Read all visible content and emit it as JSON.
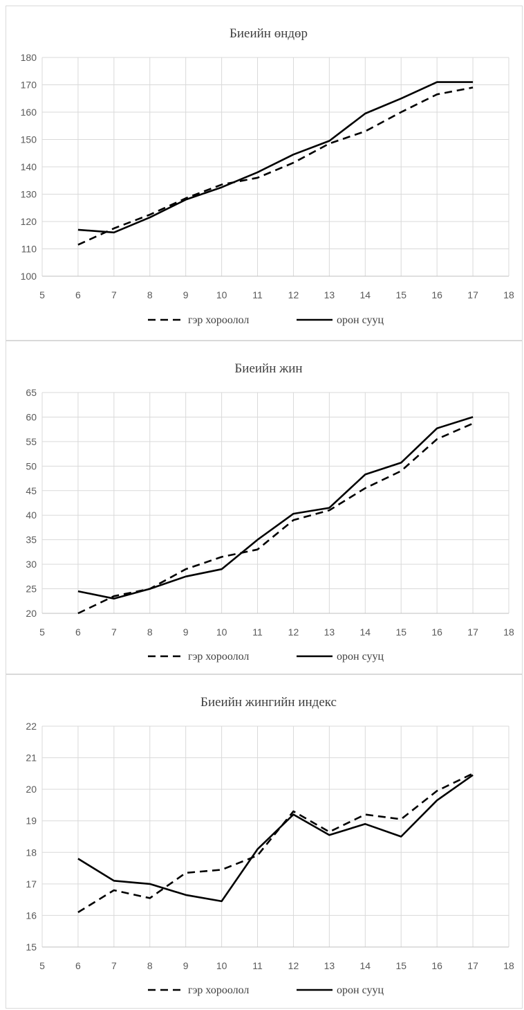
{
  "chart_data": [
    {
      "type": "line",
      "title": "Биеийн өндөр",
      "xlabel": "",
      "ylabel": "",
      "xlim": [
        5,
        18
      ],
      "xticks": [
        5,
        6,
        7,
        8,
        9,
        10,
        11,
        12,
        13,
        14,
        15,
        16,
        17,
        18
      ],
      "ylim": [
        100,
        180
      ],
      "yticks": [
        100,
        110,
        120,
        130,
        140,
        150,
        160,
        170,
        180
      ],
      "grid": true,
      "legend": "bottom",
      "x": [
        6,
        7,
        8,
        9,
        10,
        11,
        12,
        13,
        14,
        15,
        16,
        17
      ],
      "series": [
        {
          "name": "гэр хороолол",
          "style": "dashed",
          "color": "#000000",
          "values": [
            111.5,
            117.5,
            122.5,
            128.5,
            133.5,
            136.0,
            141.5,
            148.5,
            153.0,
            160.0,
            166.5,
            169.0
          ]
        },
        {
          "name": "орон сууц",
          "style": "solid",
          "color": "#000000",
          "values": [
            117.0,
            116.0,
            121.5,
            128.0,
            132.5,
            138.0,
            144.5,
            149.5,
            159.5,
            165.0,
            171.0,
            171.0
          ]
        }
      ]
    },
    {
      "type": "line",
      "title": "Биеийн жин",
      "xlabel": "",
      "ylabel": "",
      "xlim": [
        5,
        18
      ],
      "xticks": [
        5,
        6,
        7,
        8,
        9,
        10,
        11,
        12,
        13,
        14,
        15,
        16,
        17,
        18
      ],
      "ylim": [
        20,
        65
      ],
      "yticks": [
        20,
        25,
        30,
        35,
        40,
        45,
        50,
        55,
        60,
        65
      ],
      "grid": true,
      "legend": "bottom",
      "x": [
        6,
        7,
        8,
        9,
        10,
        11,
        12,
        13,
        14,
        15,
        16,
        17
      ],
      "series": [
        {
          "name": "гэр хороолол",
          "style": "dashed",
          "color": "#000000",
          "values": [
            20.0,
            23.5,
            25.0,
            29.0,
            31.5,
            33.0,
            39.0,
            41.0,
            45.5,
            49.0,
            55.5,
            58.7
          ]
        },
        {
          "name": "орон сууц",
          "style": "solid",
          "color": "#000000",
          "values": [
            24.5,
            23.0,
            25.0,
            27.5,
            29.0,
            35.0,
            40.3,
            41.5,
            48.3,
            50.7,
            57.7,
            60.0
          ]
        }
      ]
    },
    {
      "type": "line",
      "title": "Биеийн жингийн индекс",
      "xlabel": "",
      "ylabel": "",
      "xlim": [
        5,
        18
      ],
      "xticks": [
        5,
        6,
        7,
        8,
        9,
        10,
        11,
        12,
        13,
        14,
        15,
        16,
        17,
        18
      ],
      "ylim": [
        15,
        22
      ],
      "yticks": [
        15,
        16,
        17,
        18,
        19,
        20,
        21,
        22
      ],
      "grid": true,
      "legend": "bottom",
      "x": [
        6,
        7,
        8,
        9,
        10,
        11,
        12,
        13,
        14,
        15,
        16,
        17
      ],
      "series": [
        {
          "name": "гэр хороолол",
          "style": "dashed",
          "color": "#000000",
          "values": [
            16.1,
            16.8,
            16.55,
            17.35,
            17.45,
            17.9,
            19.3,
            18.65,
            19.2,
            19.05,
            19.95,
            20.5
          ]
        },
        {
          "name": "орон сууц",
          "style": "solid",
          "color": "#000000",
          "values": [
            17.8,
            17.1,
            17.0,
            16.65,
            16.45,
            18.1,
            19.2,
            18.55,
            18.9,
            18.5,
            19.65,
            20.45
          ]
        }
      ]
    }
  ]
}
